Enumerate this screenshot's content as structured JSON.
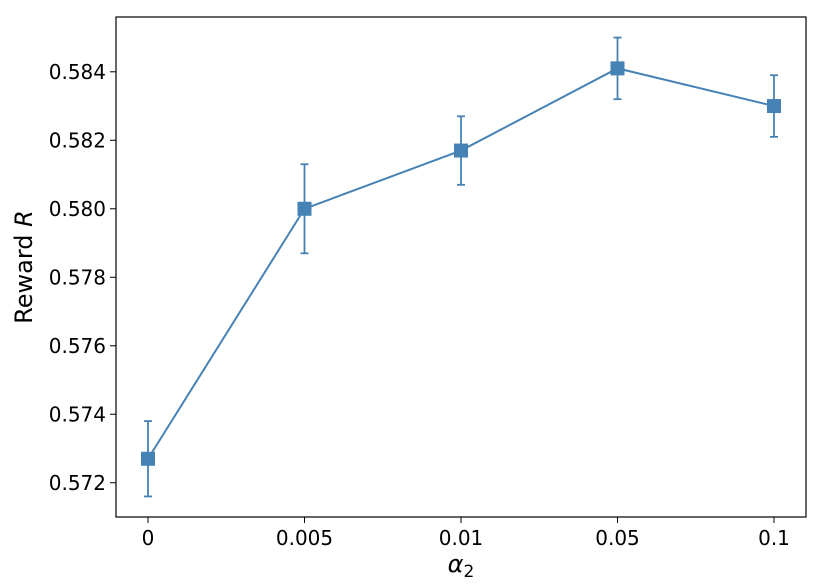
{
  "chart_data": {
    "type": "line",
    "title": "",
    "xlabel_symbol": "α",
    "xlabel_subscript": "2",
    "ylabel_text": "Reward ",
    "ylabel_italic": "R",
    "categories": [
      "0",
      "0.005",
      "0.01",
      "0.05",
      "0.1"
    ],
    "series": [
      {
        "values": [
          0.5727,
          0.58,
          0.5817,
          0.5841,
          0.583
        ],
        "err_low": [
          0.5716,
          0.5787,
          0.5807,
          0.5832,
          0.5821
        ],
        "err_high": [
          0.5738,
          0.5813,
          0.5827,
          0.585,
          0.5839
        ],
        "marker": "square",
        "color": "#4682b4"
      }
    ],
    "ylim": [
      0.571,
      0.5856
    ],
    "yticks": [
      0.572,
      0.574,
      0.576,
      0.578,
      0.58,
      0.582,
      0.584
    ],
    "ytick_labels": [
      "0.572",
      "0.574",
      "0.576",
      "0.578",
      "0.580",
      "0.582",
      "0.584"
    ],
    "grid": false,
    "legend": "none"
  }
}
